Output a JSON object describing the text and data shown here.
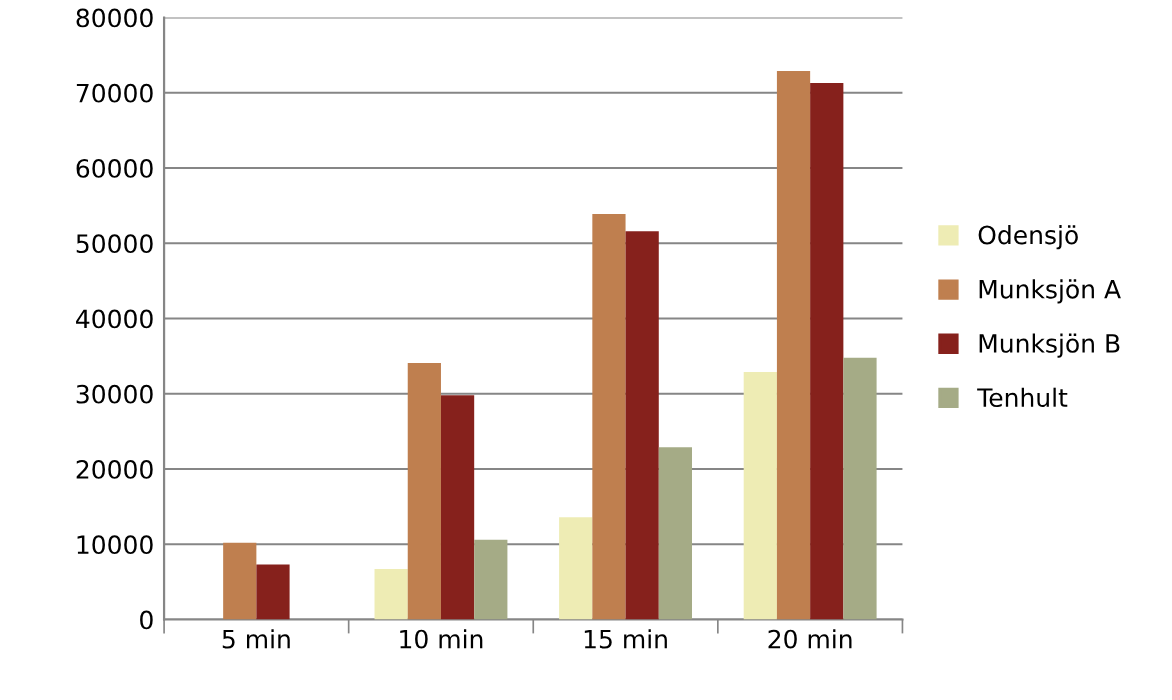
{
  "chart_data": {
    "type": "bar",
    "categories": [
      "5 min",
      "10 min",
      "15 min",
      "20 min"
    ],
    "series": [
      {
        "name": "Odensjö",
        "color": "#eeecb4",
        "values": [
          null,
          6700,
          13600,
          32900
        ]
      },
      {
        "name": "Munksjön A",
        "color": "#bf7f4f",
        "values": [
          10200,
          34100,
          53900,
          72900
        ]
      },
      {
        "name": "Munksjön B",
        "color": "#86211c",
        "values": [
          7300,
          29800,
          51600,
          71300
        ]
      },
      {
        "name": "Tenhult",
        "color": "#a5ab86",
        "values": [
          null,
          10600,
          22900,
          34800
        ]
      }
    ],
    "ylim": [
      0,
      80000
    ],
    "yticks": [
      0,
      10000,
      20000,
      30000,
      40000,
      50000,
      60000,
      70000,
      80000
    ],
    "grid": "y",
    "legend": "right"
  }
}
